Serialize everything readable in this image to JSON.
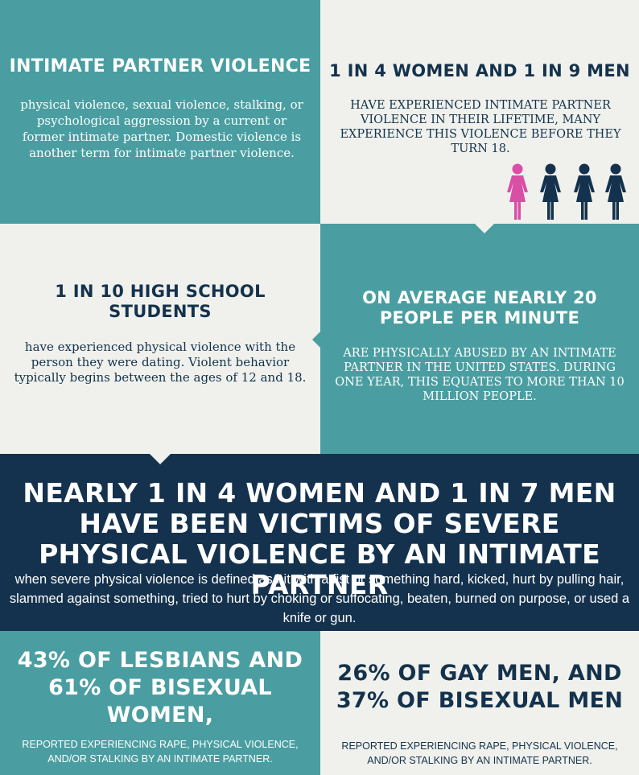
{
  "panel1": {
    "title": "INTIMATE PARTNER VIOLENCE",
    "body": "physical violence, sexual violence, stalking, or psychological aggression by a current or former intimate partner.  Domestic violence is another term for intimate partner violence."
  },
  "panel2": {
    "title": "1 IN 4 WOMEN AND 1 IN 9 MEN",
    "body": "HAVE EXPERIENCED INTIMATE PARTNER VIOLENCE IN THEIR LIFETIME, MANY EXPERIENCE THIS VIOLENCE BEFORE THEY TURN 18.",
    "figures": [
      {
        "icon": "woman-figure-icon",
        "color": "#d94fa6"
      },
      {
        "icon": "woman-figure-icon",
        "color": "#14324d"
      },
      {
        "icon": "woman-figure-icon",
        "color": "#14324d"
      },
      {
        "icon": "woman-figure-icon",
        "color": "#14324d"
      }
    ]
  },
  "panel3": {
    "title": "1 IN 10 HIGH SCHOOL STUDENTS",
    "body": "have experienced physical violence with the person they were dating. Violent behavior typically begins between the ages of 12 and 18."
  },
  "panel4": {
    "title": "ON AVERAGE NEARLY 20 PEOPLE PER MINUTE",
    "body": "ARE PHYSICALLY ABUSED BY AN INTIMATE PARTNER IN THE UNITED STATES. DURING ONE YEAR, THIS EQUATES TO MORE THAN 10 MILLION PEOPLE."
  },
  "banner": {
    "title": "NEARLY 1 IN 4 WOMEN AND 1 IN 7 MEN HAVE BEEN VICTIMS OF SEVERE PHYSICAL VIOLENCE BY AN INTIMATE PARTNER",
    "body": "when severe physical violence is defined as hit with a fist or something hard, kicked, hurt by pulling hair, slammed against something, tried to hurt by choking or suffocating, beaten, burned on purpose, or used a knife or gun."
  },
  "panel5": {
    "title": "43% OF LESBIANS AND 61% OF BISEXUAL WOMEN,",
    "body": "REPORTED EXPERIENCING RAPE, PHYSICAL VIOLENCE, AND/OR STALKING BY AN INTIMATE PARTNER."
  },
  "panel6": {
    "title": "26% OF GAY MEN, AND 37% OF BISEXUAL MEN",
    "body": "REPORTED EXPERIENCING RAPE, PHYSICAL VIOLENCE, AND/OR STALKING BY AN INTIMATE PARTNER."
  },
  "colors": {
    "teal": "#4a9ea1",
    "cream": "#f0f1ec",
    "navy": "#14324d",
    "pink": "#d94fa6"
  }
}
